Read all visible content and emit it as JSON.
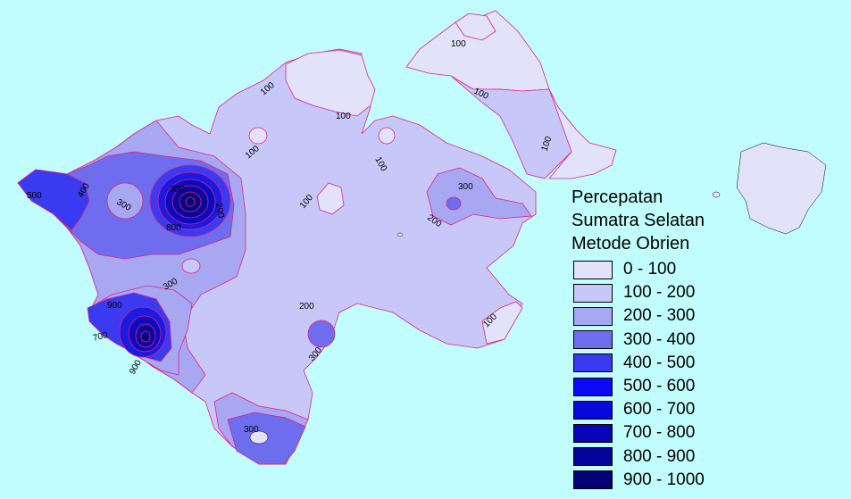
{
  "legend": {
    "title_lines": [
      "Percepatan",
      "Sumatra Selatan",
      "Metode Obrien"
    ],
    "classes": [
      {
        "label": "0 - 100",
        "color": "#e2e2fb"
      },
      {
        "label": "100 - 200",
        "color": "#c8c8f8"
      },
      {
        "label": "200 - 300",
        "color": "#a8a8f2"
      },
      {
        "label": "300 - 400",
        "color": "#6d6ded"
      },
      {
        "label": "400 - 500",
        "color": "#3a3af0"
      },
      {
        "label": "500 - 600",
        "color": "#0a0af5"
      },
      {
        "label": "600 - 700",
        "color": "#0808d8"
      },
      {
        "label": "700 - 800",
        "color": "#0606b8"
      },
      {
        "label": "800 - 900",
        "color": "#04049a"
      },
      {
        "label": "900 - 1000",
        "color": "#020278"
      }
    ]
  },
  "contour_labels": [
    "100",
    "100",
    "100",
    "100",
    "100",
    "100",
    "100",
    "100",
    "100",
    "500",
    "400",
    "300",
    "300",
    "800",
    "200",
    "300",
    "200",
    "300",
    "200",
    "900",
    "700",
    "900",
    "300",
    "300"
  ],
  "colors": {
    "sea": "#c2fdfd",
    "contour_line": "#e0208a"
  }
}
